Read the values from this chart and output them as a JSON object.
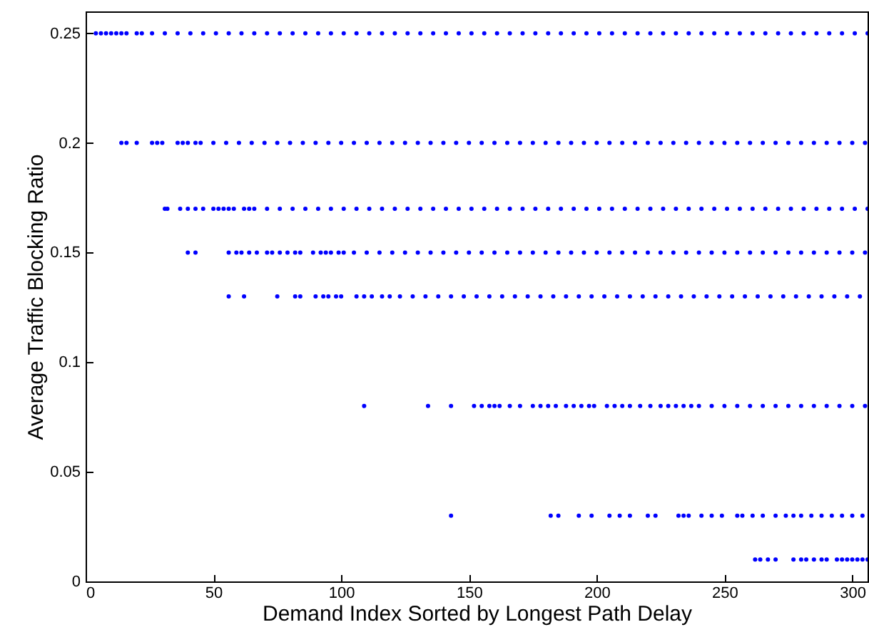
{
  "chart_data": {
    "type": "scatter",
    "xlabel": "Demand Index Sorted by Longest Path Delay",
    "ylabel": "Average Traffic Blocking Ratio",
    "xlim": [
      0,
      306
    ],
    "ylim": [
      0,
      0.26
    ],
    "xticks": [
      0,
      50,
      100,
      150,
      200,
      250,
      300
    ],
    "yticks": [
      0,
      0.05,
      0.1,
      0.15,
      0.2,
      0.25
    ],
    "grid": false,
    "marker": "circle",
    "series": [
      {
        "color": "#0000ff",
        "x": [
          4,
          6,
          8,
          10,
          12,
          14,
          16,
          20,
          22,
          26,
          31,
          36,
          41,
          46,
          51,
          56,
          61,
          66,
          71,
          76,
          81,
          86,
          91,
          96,
          101,
          106,
          111,
          116,
          121,
          126,
          131,
          136,
          141,
          146,
          151,
          156,
          161,
          166,
          171,
          176,
          181,
          186,
          191,
          196,
          201,
          206,
          211,
          216,
          221,
          226,
          231,
          236,
          241,
          246,
          251,
          256,
          261,
          266,
          271,
          276,
          281,
          286,
          291,
          296,
          301,
          306
        ],
        "values": [
          0.25,
          0.25,
          0.25,
          0.25,
          0.25,
          0.25,
          0.25,
          0.25,
          0.25,
          0.25,
          0.25,
          0.25,
          0.25,
          0.25,
          0.25,
          0.25,
          0.25,
          0.25,
          0.25,
          0.25,
          0.25,
          0.25,
          0.25,
          0.25,
          0.25,
          0.25,
          0.25,
          0.25,
          0.25,
          0.25,
          0.25,
          0.25,
          0.25,
          0.25,
          0.25,
          0.25,
          0.25,
          0.25,
          0.25,
          0.25,
          0.25,
          0.25,
          0.25,
          0.25,
          0.25,
          0.25,
          0.25,
          0.25,
          0.25,
          0.25,
          0.25,
          0.25,
          0.25,
          0.25,
          0.25,
          0.25,
          0.25,
          0.25,
          0.25,
          0.25,
          0.25,
          0.25,
          0.25,
          0.25,
          0.25,
          0.25
        ]
      },
      {
        "color": "#0000ff",
        "x": [
          14,
          16,
          20,
          26,
          28,
          30,
          36,
          38,
          40,
          43,
          45,
          50,
          55,
          60,
          65,
          70,
          75,
          80,
          85,
          90,
          95,
          100,
          105,
          110,
          115,
          120,
          125,
          130,
          135,
          140,
          145,
          150,
          155,
          160,
          165,
          170,
          175,
          180,
          185,
          190,
          195,
          200,
          205,
          210,
          215,
          220,
          225,
          230,
          235,
          240,
          245,
          250,
          255,
          260,
          265,
          270,
          275,
          280,
          285,
          290,
          295,
          300,
          305
        ],
        "values": [
          0.2,
          0.2,
          0.2,
          0.2,
          0.2,
          0.2,
          0.2,
          0.2,
          0.2,
          0.2,
          0.2,
          0.2,
          0.2,
          0.2,
          0.2,
          0.2,
          0.2,
          0.2,
          0.2,
          0.2,
          0.2,
          0.2,
          0.2,
          0.2,
          0.2,
          0.2,
          0.2,
          0.2,
          0.2,
          0.2,
          0.2,
          0.2,
          0.2,
          0.2,
          0.2,
          0.2,
          0.2,
          0.2,
          0.2,
          0.2,
          0.2,
          0.2,
          0.2,
          0.2,
          0.2,
          0.2,
          0.2,
          0.2,
          0.2,
          0.2,
          0.2,
          0.2,
          0.2,
          0.2,
          0.2,
          0.2,
          0.2,
          0.2,
          0.2,
          0.2,
          0.2,
          0.2,
          0.2
        ]
      },
      {
        "color": "#0000ff",
        "x": [
          31,
          32,
          37,
          40,
          43,
          46,
          50,
          52,
          54,
          56,
          58,
          62,
          64,
          66,
          71,
          76,
          81,
          86,
          91,
          96,
          101,
          106,
          111,
          116,
          121,
          126,
          131,
          136,
          141,
          146,
          151,
          156,
          161,
          166,
          171,
          176,
          181,
          186,
          191,
          196,
          201,
          206,
          211,
          216,
          221,
          226,
          231,
          236,
          241,
          246,
          251,
          256,
          261,
          266,
          271,
          276,
          281,
          286,
          291,
          296,
          301,
          306
        ],
        "values": [
          0.17,
          0.17,
          0.17,
          0.17,
          0.17,
          0.17,
          0.17,
          0.17,
          0.17,
          0.17,
          0.17,
          0.17,
          0.17,
          0.17,
          0.17,
          0.17,
          0.17,
          0.17,
          0.17,
          0.17,
          0.17,
          0.17,
          0.17,
          0.17,
          0.17,
          0.17,
          0.17,
          0.17,
          0.17,
          0.17,
          0.17,
          0.17,
          0.17,
          0.17,
          0.17,
          0.17,
          0.17,
          0.17,
          0.17,
          0.17,
          0.17,
          0.17,
          0.17,
          0.17,
          0.17,
          0.17,
          0.17,
          0.17,
          0.17,
          0.17,
          0.17,
          0.17,
          0.17,
          0.17,
          0.17,
          0.17,
          0.17,
          0.17,
          0.17,
          0.17,
          0.17,
          0.17
        ]
      },
      {
        "color": "#0000ff",
        "x": [
          40,
          43,
          56,
          59,
          61,
          64,
          67,
          71,
          73,
          76,
          79,
          82,
          84,
          89,
          92,
          94,
          96,
          99,
          101,
          105,
          110,
          115,
          120,
          125,
          130,
          135,
          140,
          145,
          150,
          155,
          160,
          165,
          170,
          175,
          180,
          185,
          190,
          195,
          200,
          205,
          210,
          215,
          220,
          225,
          230,
          235,
          240,
          245,
          250,
          255,
          260,
          265,
          270,
          275,
          280,
          285,
          290,
          295,
          300,
          305
        ],
        "values": [
          0.15,
          0.15,
          0.15,
          0.15,
          0.15,
          0.15,
          0.15,
          0.15,
          0.15,
          0.15,
          0.15,
          0.15,
          0.15,
          0.15,
          0.15,
          0.15,
          0.15,
          0.15,
          0.15,
          0.15,
          0.15,
          0.15,
          0.15,
          0.15,
          0.15,
          0.15,
          0.15,
          0.15,
          0.15,
          0.15,
          0.15,
          0.15,
          0.15,
          0.15,
          0.15,
          0.15,
          0.15,
          0.15,
          0.15,
          0.15,
          0.15,
          0.15,
          0.15,
          0.15,
          0.15,
          0.15,
          0.15,
          0.15,
          0.15,
          0.15,
          0.15,
          0.15,
          0.15,
          0.15,
          0.15,
          0.15,
          0.15,
          0.15,
          0.15,
          0.15
        ]
      },
      {
        "color": "#0000ff",
        "x": [
          56,
          62,
          75,
          82,
          84,
          90,
          93,
          95,
          98,
          100,
          106,
          109,
          112,
          116,
          119,
          123,
          128,
          133,
          138,
          143,
          148,
          153,
          158,
          163,
          168,
          173,
          178,
          183,
          188,
          193,
          198,
          203,
          208,
          213,
          218,
          223,
          228,
          233,
          238,
          243,
          248,
          253,
          258,
          263,
          268,
          273,
          278,
          283,
          288,
          293,
          298,
          303
        ],
        "values": [
          0.13,
          0.13,
          0.13,
          0.13,
          0.13,
          0.13,
          0.13,
          0.13,
          0.13,
          0.13,
          0.13,
          0.13,
          0.13,
          0.13,
          0.13,
          0.13,
          0.13,
          0.13,
          0.13,
          0.13,
          0.13,
          0.13,
          0.13,
          0.13,
          0.13,
          0.13,
          0.13,
          0.13,
          0.13,
          0.13,
          0.13,
          0.13,
          0.13,
          0.13,
          0.13,
          0.13,
          0.13,
          0.13,
          0.13,
          0.13,
          0.13,
          0.13,
          0.13,
          0.13,
          0.13,
          0.13,
          0.13,
          0.13,
          0.13,
          0.13,
          0.13,
          0.13
        ]
      },
      {
        "color": "#0000ff",
        "x": [
          109,
          134,
          143,
          152,
          155,
          158,
          160,
          162,
          166,
          170,
          175,
          178,
          181,
          184,
          188,
          191,
          194,
          197,
          199,
          204,
          207,
          210,
          213,
          217,
          221,
          225,
          228,
          231,
          234,
          237,
          240,
          245,
          250,
          255,
          260,
          265,
          270,
          275,
          280,
          285,
          290,
          295,
          300,
          305
        ],
        "values": [
          0.08,
          0.08,
          0.08,
          0.08,
          0.08,
          0.08,
          0.08,
          0.08,
          0.08,
          0.08,
          0.08,
          0.08,
          0.08,
          0.08,
          0.08,
          0.08,
          0.08,
          0.08,
          0.08,
          0.08,
          0.08,
          0.08,
          0.08,
          0.08,
          0.08,
          0.08,
          0.08,
          0.08,
          0.08,
          0.08,
          0.08,
          0.08,
          0.08,
          0.08,
          0.08,
          0.08,
          0.08,
          0.08,
          0.08,
          0.08,
          0.08,
          0.08,
          0.08,
          0.08
        ]
      },
      {
        "color": "#0000ff",
        "x": [
          143,
          182,
          185,
          193,
          198,
          205,
          209,
          213,
          220,
          223,
          232,
          234,
          236,
          241,
          245,
          249,
          255,
          257,
          261,
          265,
          270,
          274,
          277,
          280,
          284,
          288,
          292,
          296,
          300,
          304
        ],
        "values": [
          0.03,
          0.03,
          0.03,
          0.03,
          0.03,
          0.03,
          0.03,
          0.03,
          0.03,
          0.03,
          0.03,
          0.03,
          0.03,
          0.03,
          0.03,
          0.03,
          0.03,
          0.03,
          0.03,
          0.03,
          0.03,
          0.03,
          0.03,
          0.03,
          0.03,
          0.03,
          0.03,
          0.03,
          0.03,
          0.03
        ]
      },
      {
        "color": "#0000ff",
        "x": [
          262,
          264,
          267,
          270,
          277,
          280,
          282,
          285,
          288,
          290,
          294,
          296,
          298,
          300,
          302,
          304,
          306
        ],
        "values": [
          0.01,
          0.01,
          0.01,
          0.01,
          0.01,
          0.01,
          0.01,
          0.01,
          0.01,
          0.01,
          0.01,
          0.01,
          0.01,
          0.01,
          0.01,
          0.01,
          0.01
        ]
      }
    ]
  }
}
